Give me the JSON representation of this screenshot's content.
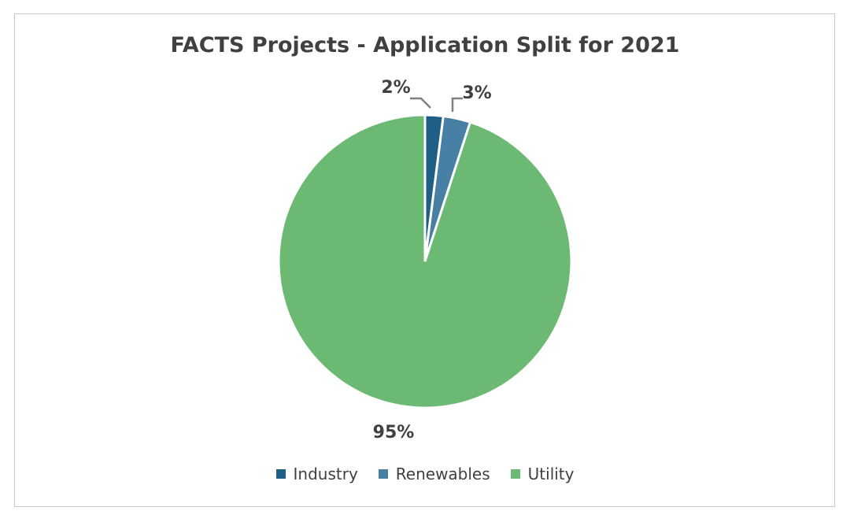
{
  "chart_data": {
    "type": "pie",
    "title": "FACTS Projects - Application Split for 2021",
    "categories": [
      "Industry",
      "Renewables",
      "Utility"
    ],
    "values": [
      2,
      3,
      95
    ],
    "labels": [
      "2%",
      "3%",
      "95%"
    ],
    "colors": [
      "#1f5f86",
      "#477fa5",
      "#6cb973"
    ],
    "legend_position": "bottom"
  }
}
